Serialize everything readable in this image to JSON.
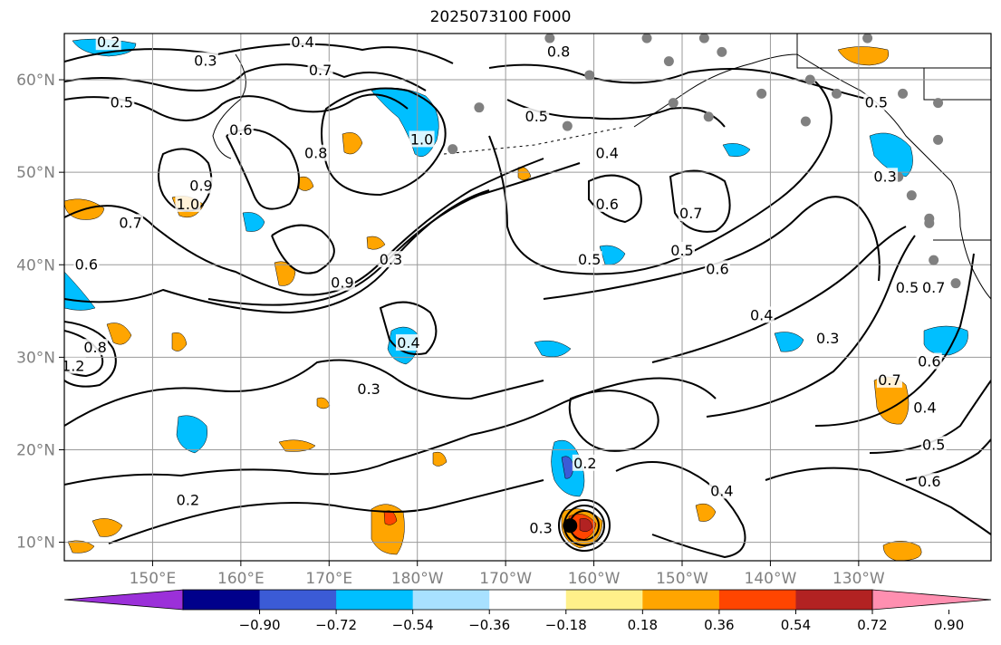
{
  "title": "2025073100 F000",
  "map": {
    "projection": "cylindrical",
    "lon_range": [
      140,
      245
    ],
    "lat_range": [
      8,
      65
    ],
    "gridlines": true,
    "lat_ticks": [
      {
        "lat": 60,
        "label": "60°N"
      },
      {
        "lat": 50,
        "label": "50°N"
      },
      {
        "lat": 40,
        "label": "40°N"
      },
      {
        "lat": 30,
        "label": "30°N"
      },
      {
        "lat": 20,
        "label": "20°N"
      },
      {
        "lat": 10,
        "label": "10°N"
      }
    ],
    "lon_ticks": [
      {
        "lon": 150,
        "label": "150°E"
      },
      {
        "lon": 160,
        "label": "160°E"
      },
      {
        "lon": 170,
        "label": "170°E"
      },
      {
        "lon": 180,
        "label": "180°W"
      },
      {
        "lon": 190,
        "label": "170°W"
      },
      {
        "lon": 200,
        "label": "160°W"
      },
      {
        "lon": 210,
        "label": "150°W"
      },
      {
        "lon": 220,
        "label": "140°W"
      },
      {
        "lon": 230,
        "label": "130°W"
      }
    ],
    "contour_labels": [
      {
        "text": "0.2",
        "lon": 145,
        "lat": 64
      },
      {
        "text": "0.4",
        "lon": 167,
        "lat": 64
      },
      {
        "text": "0.3",
        "lon": 156,
        "lat": 62
      },
      {
        "text": "0.7",
        "lon": 169,
        "lat": 61
      },
      {
        "text": "0.5",
        "lon": 146.5,
        "lat": 57.5
      },
      {
        "text": "0.6",
        "lon": 160,
        "lat": 54.5
      },
      {
        "text": "0.8",
        "lon": 168.5,
        "lat": 52
      },
      {
        "text": "0.9",
        "lon": 155.5,
        "lat": 48.5
      },
      {
        "text": "1.0",
        "lon": 154,
        "lat": 46.5
      },
      {
        "text": "0.7",
        "lon": 147.5,
        "lat": 44.5
      },
      {
        "text": "0.6",
        "lon": 142.5,
        "lat": 40
      },
      {
        "text": "0.8",
        "lon": 143.5,
        "lat": 31
      },
      {
        "text": "1.2",
        "lon": 141,
        "lat": 29
      },
      {
        "text": "0.9",
        "lon": 171.5,
        "lat": 38
      },
      {
        "text": "0.3",
        "lon": 177,
        "lat": 40.5
      },
      {
        "text": "1.0",
        "lon": 180.5,
        "lat": 53.5
      },
      {
        "text": "0.8",
        "lon": 196,
        "lat": 63
      },
      {
        "text": "0.5",
        "lon": 193.5,
        "lat": 56
      },
      {
        "text": "0.4",
        "lon": 201.5,
        "lat": 52
      },
      {
        "text": "0.6",
        "lon": 201.5,
        "lat": 46.5
      },
      {
        "text": "0.5",
        "lon": 199.5,
        "lat": 40.5
      },
      {
        "text": "0.7",
        "lon": 211,
        "lat": 45.5
      },
      {
        "text": "0.5",
        "lon": 210,
        "lat": 41.5
      },
      {
        "text": "0.6",
        "lon": 214,
        "lat": 39.5
      },
      {
        "text": "0.4",
        "lon": 219,
        "lat": 34.5
      },
      {
        "text": "0.3",
        "lon": 226.5,
        "lat": 32
      },
      {
        "text": "0.4",
        "lon": 179,
        "lat": 31.5
      },
      {
        "text": "0.3",
        "lon": 174.5,
        "lat": 26.5
      },
      {
        "text": "0.2",
        "lon": 154,
        "lat": 14.5
      },
      {
        "text": "0.2",
        "lon": 199,
        "lat": 18.5
      },
      {
        "text": "0.4",
        "lon": 214.5,
        "lat": 15.5
      },
      {
        "text": "0.3",
        "lon": 194,
        "lat": 11.5
      },
      {
        "text": "0.5",
        "lon": 232,
        "lat": 57.5
      },
      {
        "text": "0.3",
        "lon": 233,
        "lat": 49.5
      },
      {
        "text": "0.5",
        "lon": 235.5,
        "lat": 37.5
      },
      {
        "text": "0.7",
        "lon": 238.5,
        "lat": 37.5
      },
      {
        "text": "0.7",
        "lon": 233.5,
        "lat": 27.5
      },
      {
        "text": "0.6",
        "lon": 238,
        "lat": 29.5
      },
      {
        "text": "0.4",
        "lon": 237.5,
        "lat": 24.5
      },
      {
        "text": "0.5",
        "lon": 238.5,
        "lat": 20.5
      },
      {
        "text": "0.6",
        "lon": 238,
        "lat": 16.5
      }
    ],
    "station_markers": [
      [
        195,
        64.5
      ],
      [
        199.5,
        60.5
      ],
      [
        206,
        64.5
      ],
      [
        208.5,
        62
      ],
      [
        212.5,
        64.5
      ],
      [
        214.5,
        63
      ],
      [
        231,
        64.5
      ],
      [
        219,
        58.5
      ],
      [
        224.5,
        60
      ],
      [
        227.5,
        58.5
      ],
      [
        235,
        58.5
      ],
      [
        239,
        57.5
      ],
      [
        239,
        53.5
      ],
      [
        187,
        57
      ],
      [
        197,
        55
      ],
      [
        213,
        56
      ],
      [
        209,
        57.5
      ],
      [
        224,
        55.5
      ],
      [
        234.5,
        49.5
      ],
      [
        236,
        47.5
      ],
      [
        238,
        45
      ],
      [
        238.5,
        40.5
      ],
      [
        241,
        38
      ],
      [
        184,
        52.5
      ],
      [
        238,
        44.5
      ]
    ],
    "storm_center": {
      "lon": 197.3,
      "lat": 11.8
    }
  },
  "colorbar": {
    "colors": [
      "#9b30d9",
      "#00008b",
      "#3b5bd6",
      "#00bfff",
      "#a8e1ff",
      "#ffffff",
      "#fff08a",
      "#ffa500",
      "#ff4500",
      "#b22222",
      "#ff8fb0"
    ],
    "tick_labels": [
      "−0.90",
      "−0.72",
      "−0.54",
      "−0.36",
      "−0.18",
      "0.18",
      "0.36",
      "0.54",
      "0.72",
      "0.90"
    ]
  }
}
